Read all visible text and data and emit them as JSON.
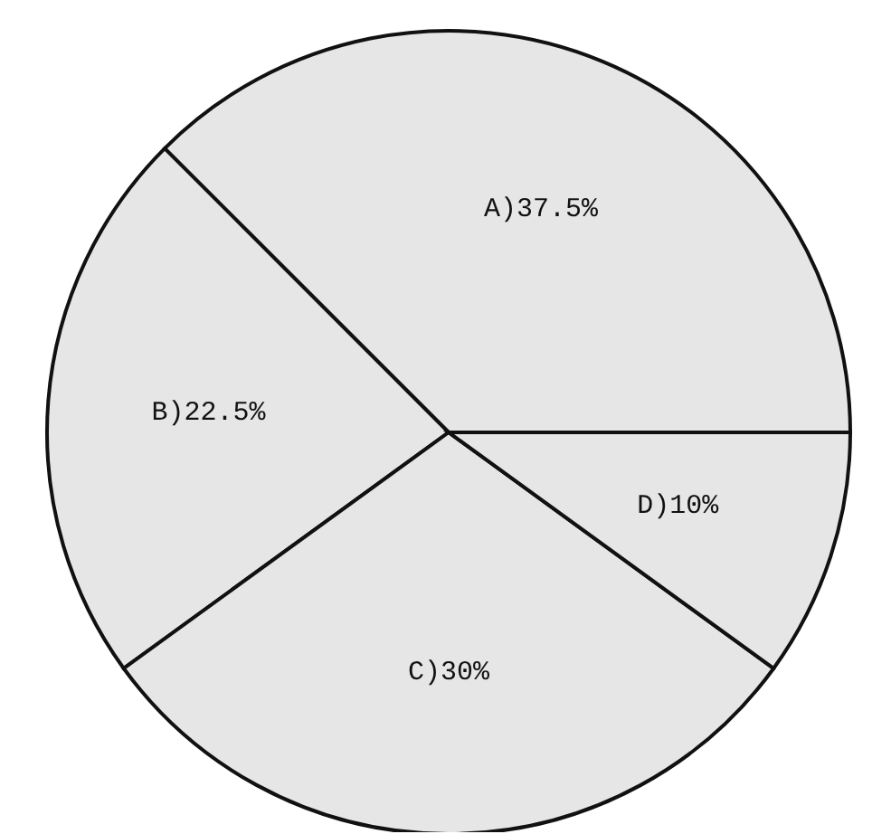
{
  "chart_data": {
    "type": "pie",
    "categories": [
      "A)",
      "B)",
      "C)",
      "D)"
    ],
    "values": [
      37.5,
      22.5,
      30,
      10
    ],
    "colors": [
      "#e6e6e6",
      "#e6e6e6",
      "#e6e6e6",
      "#e6e6e6"
    ],
    "value_labels": [
      "37.5%",
      "22.5%",
      "30%",
      "10%"
    ]
  }
}
